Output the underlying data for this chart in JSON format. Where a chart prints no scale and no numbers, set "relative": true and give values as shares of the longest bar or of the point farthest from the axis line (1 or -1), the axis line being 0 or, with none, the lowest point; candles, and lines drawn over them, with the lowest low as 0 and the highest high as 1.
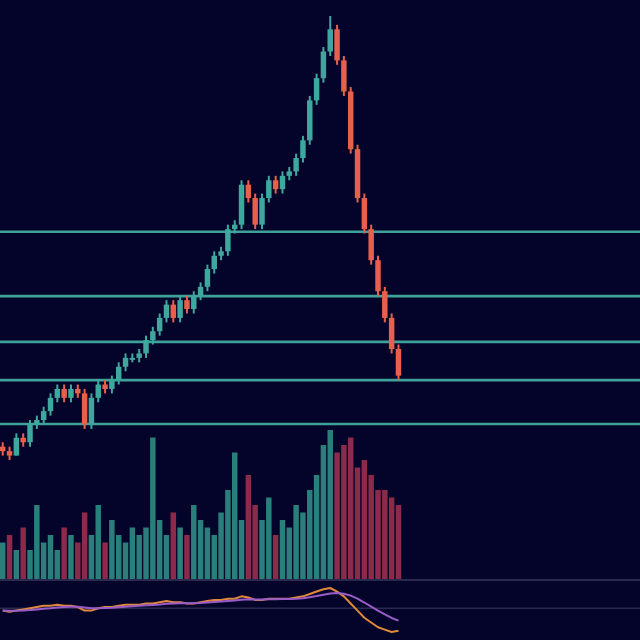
{
  "chart_data": [
    {
      "type": "candlestick",
      "relative": true,
      "categories": [
        null,
        null,
        null,
        null,
        null,
        null,
        null,
        null,
        null,
        null,
        null,
        null,
        null,
        null,
        null,
        null,
        null,
        null,
        null,
        null,
        null,
        null,
        null,
        null,
        null,
        null,
        null,
        null,
        null,
        null,
        null,
        null,
        null,
        null,
        null,
        null,
        null,
        null,
        null,
        null,
        null,
        null,
        null,
        null,
        null,
        null,
        null,
        null,
        null,
        null,
        null,
        null,
        null,
        null,
        null,
        null,
        null,
        null,
        null,
        null,
        null,
        null,
        null,
        null,
        null,
        null,
        null,
        null,
        null,
        null,
        null,
        null,
        null,
        null,
        null,
        null,
        null,
        null,
        null,
        null,
        null,
        null,
        null,
        null,
        null,
        null,
        null,
        null,
        null,
        null,
        null,
        null,
        null,
        null
      ],
      "ohlc": [
        [
          0.03,
          0.04,
          0.01,
          0.02
        ],
        [
          0.02,
          0.03,
          0.0,
          0.01
        ],
        [
          0.01,
          0.06,
          0.01,
          0.05
        ],
        [
          0.05,
          0.06,
          0.03,
          0.04
        ],
        [
          0.04,
          0.09,
          0.03,
          0.08
        ],
        [
          0.08,
          0.1,
          0.07,
          0.09
        ],
        [
          0.09,
          0.12,
          0.08,
          0.11
        ],
        [
          0.11,
          0.15,
          0.1,
          0.14
        ],
        [
          0.14,
          0.17,
          0.13,
          0.16
        ],
        [
          0.16,
          0.17,
          0.13,
          0.14
        ],
        [
          0.14,
          0.17,
          0.13,
          0.16
        ],
        [
          0.16,
          0.17,
          0.14,
          0.15
        ],
        [
          0.15,
          0.16,
          0.07,
          0.08
        ],
        [
          0.08,
          0.15,
          0.07,
          0.14
        ],
        [
          0.14,
          0.18,
          0.13,
          0.17
        ],
        [
          0.17,
          0.18,
          0.15,
          0.16
        ],
        [
          0.16,
          0.19,
          0.15,
          0.18
        ],
        [
          0.18,
          0.22,
          0.17,
          0.21
        ],
        [
          0.21,
          0.24,
          0.2,
          0.23
        ],
        [
          0.23,
          0.24,
          0.22,
          0.23
        ],
        [
          0.23,
          0.25,
          0.22,
          0.24
        ],
        [
          0.24,
          0.28,
          0.23,
          0.27
        ],
        [
          0.27,
          0.3,
          0.26,
          0.29
        ],
        [
          0.29,
          0.33,
          0.28,
          0.32
        ],
        [
          0.32,
          0.36,
          0.31,
          0.35
        ],
        [
          0.35,
          0.36,
          0.31,
          0.32
        ],
        [
          0.32,
          0.37,
          0.31,
          0.36
        ],
        [
          0.36,
          0.37,
          0.33,
          0.34
        ],
        [
          0.34,
          0.38,
          0.33,
          0.37
        ],
        [
          0.37,
          0.4,
          0.36,
          0.39
        ],
        [
          0.39,
          0.44,
          0.38,
          0.43
        ],
        [
          0.43,
          0.47,
          0.42,
          0.46
        ],
        [
          0.46,
          0.48,
          0.45,
          0.47
        ],
        [
          0.47,
          0.53,
          0.46,
          0.52
        ],
        [
          0.52,
          0.54,
          0.51,
          0.53
        ],
        [
          0.53,
          0.63,
          0.52,
          0.62
        ],
        [
          0.62,
          0.63,
          0.58,
          0.59
        ],
        [
          0.59,
          0.6,
          0.52,
          0.53
        ],
        [
          0.53,
          0.6,
          0.52,
          0.59
        ],
        [
          0.59,
          0.64,
          0.58,
          0.63
        ],
        [
          0.63,
          0.64,
          0.6,
          0.61
        ],
        [
          0.61,
          0.65,
          0.6,
          0.64
        ],
        [
          0.64,
          0.66,
          0.63,
          0.65
        ],
        [
          0.65,
          0.69,
          0.64,
          0.68
        ],
        [
          0.68,
          0.73,
          0.67,
          0.72
        ],
        [
          0.72,
          0.82,
          0.71,
          0.81
        ],
        [
          0.81,
          0.87,
          0.8,
          0.86
        ],
        [
          0.86,
          0.93,
          0.85,
          0.92
        ],
        [
          0.92,
          1.0,
          0.91,
          0.97
        ],
        [
          0.97,
          0.98,
          0.89,
          0.9
        ],
        [
          0.9,
          0.91,
          0.82,
          0.83
        ],
        [
          0.83,
          0.84,
          0.69,
          0.7
        ],
        [
          0.7,
          0.71,
          0.58,
          0.59
        ],
        [
          0.59,
          0.6,
          0.51,
          0.52
        ],
        [
          0.52,
          0.53,
          0.44,
          0.45
        ],
        [
          0.45,
          0.46,
          0.37,
          0.38
        ],
        [
          0.38,
          0.39,
          0.31,
          0.32
        ],
        [
          0.32,
          0.33,
          0.24,
          0.25
        ],
        [
          0.25,
          0.26,
          0.18,
          0.19
        ],
        null,
        null,
        null,
        null,
        null,
        null,
        null,
        null,
        null,
        null,
        null,
        null,
        null,
        null,
        null,
        null,
        null,
        null,
        null,
        null,
        null,
        null,
        null,
        null,
        null,
        null,
        null,
        null,
        null,
        null,
        null,
        null,
        null,
        null,
        null
      ],
      "ref_lines": [
        {
          "axis": "y",
          "value": 0.514,
          "color": "#3fa29a"
        },
        {
          "axis": "y",
          "value": 0.369,
          "color": "#3fa29a"
        },
        {
          "axis": "y",
          "value": 0.266,
          "color": "#3fa29a"
        },
        {
          "axis": "y",
          "value": 0.18,
          "color": "#3fa29a"
        },
        {
          "axis": "y",
          "value": 0.081,
          "color": "#3fa29a"
        }
      ]
    },
    {
      "type": "bar",
      "relative": true,
      "categories": [
        null,
        null,
        null,
        null,
        null,
        null,
        null,
        null,
        null,
        null,
        null,
        null,
        null,
        null,
        null,
        null,
        null,
        null,
        null,
        null,
        null,
        null,
        null,
        null,
        null,
        null,
        null,
        null,
        null,
        null,
        null,
        null,
        null,
        null,
        null,
        null,
        null,
        null,
        null,
        null,
        null,
        null,
        null,
        null,
        null,
        null,
        null,
        null,
        null,
        null,
        null,
        null,
        null,
        null,
        null,
        null,
        null,
        null,
        null,
        null,
        null,
        null,
        null,
        null,
        null,
        null,
        null,
        null,
        null,
        null,
        null,
        null,
        null,
        null,
        null,
        null,
        null,
        null,
        null,
        null,
        null,
        null,
        null,
        null,
        null,
        null,
        null,
        null,
        null,
        null,
        null,
        null,
        null,
        null
      ],
      "values": [
        0.25,
        0.3,
        0.2,
        0.35,
        0.2,
        0.5,
        0.25,
        0.3,
        0.2,
        0.35,
        0.3,
        0.25,
        0.45,
        0.3,
        0.5,
        0.25,
        0.4,
        0.3,
        0.25,
        0.35,
        0.3,
        0.35,
        0.95,
        0.4,
        0.3,
        0.45,
        0.35,
        0.3,
        0.5,
        0.4,
        0.35,
        0.3,
        0.45,
        0.6,
        0.85,
        0.4,
        0.7,
        0.5,
        0.4,
        0.55,
        0.3,
        0.4,
        0.35,
        0.5,
        0.45,
        0.6,
        0.7,
        0.9,
        1.0,
        0.85,
        0.9,
        0.95,
        0.75,
        0.8,
        0.7,
        0.6,
        0.6,
        0.55,
        0.5,
        null,
        null,
        null,
        null,
        null,
        null,
        null,
        null,
        null,
        null,
        null,
        null,
        null,
        null,
        null,
        null,
        null,
        null,
        null,
        null,
        null,
        null,
        null,
        null,
        null,
        null,
        null,
        null,
        null,
        null,
        null,
        null,
        null,
        null,
        null
      ],
      "colors": [
        "#2a7f7a",
        "#8c2a4a",
        "#2a7f7a",
        "#8c2a4a",
        "#2a7f7a",
        "#2a7f7a",
        "#2a7f7a",
        "#2a7f7a",
        "#2a7f7a",
        "#8c2a4a",
        "#2a7f7a",
        "#8c2a4a",
        "#8c2a4a",
        "#2a7f7a",
        "#2a7f7a",
        "#8c2a4a",
        "#2a7f7a",
        "#2a7f7a",
        "#2a7f7a",
        "#2a7f7a",
        "#2a7f7a",
        "#2a7f7a",
        "#2a7f7a",
        "#2a7f7a",
        "#2a7f7a",
        "#8c2a4a",
        "#2a7f7a",
        "#8c2a4a",
        "#2a7f7a",
        "#2a7f7a",
        "#2a7f7a",
        "#2a7f7a",
        "#2a7f7a",
        "#2a7f7a",
        "#2a7f7a",
        "#2a7f7a",
        "#8c2a4a",
        "#8c2a4a",
        "#2a7f7a",
        "#2a7f7a",
        "#8c2a4a",
        "#2a7f7a",
        "#2a7f7a",
        "#2a7f7a",
        "#2a7f7a",
        "#2a7f7a",
        "#2a7f7a",
        "#2a7f7a",
        "#2a7f7a",
        "#8c2a4a",
        "#8c2a4a",
        "#8c2a4a",
        "#8c2a4a",
        "#8c2a4a",
        "#8c2a4a",
        "#8c2a4a",
        "#8c2a4a",
        "#8c2a4a",
        "#8c2a4a",
        null,
        null,
        null,
        null,
        null,
        null,
        null,
        null,
        null,
        null,
        null,
        null,
        null,
        null,
        null,
        null,
        null,
        null,
        null,
        null,
        null,
        null,
        null,
        null,
        null,
        null,
        null,
        null,
        null,
        null,
        null,
        null,
        null,
        null,
        null
      ]
    },
    {
      "type": "line",
      "relative": true,
      "categories": [
        null,
        null,
        null,
        null,
        null,
        null,
        null,
        null,
        null,
        null,
        null,
        null,
        null,
        null,
        null,
        null,
        null,
        null,
        null,
        null,
        null,
        null,
        null,
        null,
        null,
        null,
        null,
        null,
        null,
        null,
        null,
        null,
        null,
        null,
        null,
        null,
        null,
        null,
        null,
        null,
        null,
        null,
        null,
        null,
        null,
        null,
        null,
        null,
        null,
        null,
        null,
        null,
        null,
        null,
        null,
        null,
        null,
        null,
        null,
        null,
        null,
        null,
        null,
        null,
        null,
        null,
        null,
        null,
        null,
        null,
        null,
        null,
        null,
        null,
        null,
        null,
        null,
        null,
        null,
        null,
        null,
        null,
        null,
        null,
        null,
        null,
        null,
        null,
        null,
        null,
        null,
        null,
        null,
        null
      ],
      "series": [
        {
          "color": "#e0893c",
          "values": [
            -0.1,
            -0.15,
            -0.1,
            -0.05,
            0,
            0.05,
            0.1,
            0.1,
            0.15,
            0.1,
            0.1,
            0.05,
            -0.1,
            -0.1,
            0,
            0.05,
            0.05,
            0.1,
            0.15,
            0.15,
            0.15,
            0.2,
            0.2,
            0.25,
            0.3,
            0.25,
            0.25,
            0.2,
            0.2,
            0.25,
            0.3,
            0.35,
            0.35,
            0.4,
            0.4,
            0.5,
            0.45,
            0.35,
            0.35,
            0.4,
            0.4,
            0.4,
            0.4,
            0.45,
            0.5,
            0.6,
            0.7,
            0.8,
            0.85,
            0.7,
            0.5,
            0.2,
            -0.1,
            -0.4,
            -0.6,
            -0.8,
            -0.9,
            -1.0,
            -0.95,
            null,
            null,
            null,
            null,
            null,
            null,
            null,
            null,
            null,
            null,
            null,
            null,
            null,
            null,
            null,
            null,
            null,
            null,
            null,
            null,
            null,
            null,
            null,
            null,
            null,
            null,
            null,
            null,
            null,
            null,
            null,
            null,
            null,
            null,
            null
          ]
        },
        {
          "color": "#9a5cc8",
          "values": [
            -0.1,
            -0.11,
            -0.11,
            -0.1,
            -0.08,
            -0.05,
            -0.02,
            0,
            0.03,
            0.05,
            0.06,
            0.06,
            0.03,
            0,
            0,
            0.01,
            0.02,
            0.04,
            0.06,
            0.08,
            0.1,
            0.12,
            0.14,
            0.16,
            0.19,
            0.2,
            0.21,
            0.21,
            0.21,
            0.22,
            0.24,
            0.26,
            0.28,
            0.3,
            0.32,
            0.36,
            0.38,
            0.37,
            0.37,
            0.38,
            0.38,
            0.39,
            0.39,
            0.4,
            0.42,
            0.46,
            0.51,
            0.57,
            0.62,
            0.64,
            0.61,
            0.53,
            0.4,
            0.24,
            0.07,
            -0.1,
            -0.26,
            -0.41,
            -0.52,
            null,
            null,
            null,
            null,
            null,
            null,
            null,
            null,
            null,
            null,
            null,
            null,
            null,
            null,
            null,
            null,
            null,
            null,
            null,
            null,
            null,
            null,
            null,
            null,
            null,
            null,
            null,
            null,
            null,
            null,
            null,
            null,
            null,
            null,
            null
          ]
        }
      ]
    }
  ]
}
